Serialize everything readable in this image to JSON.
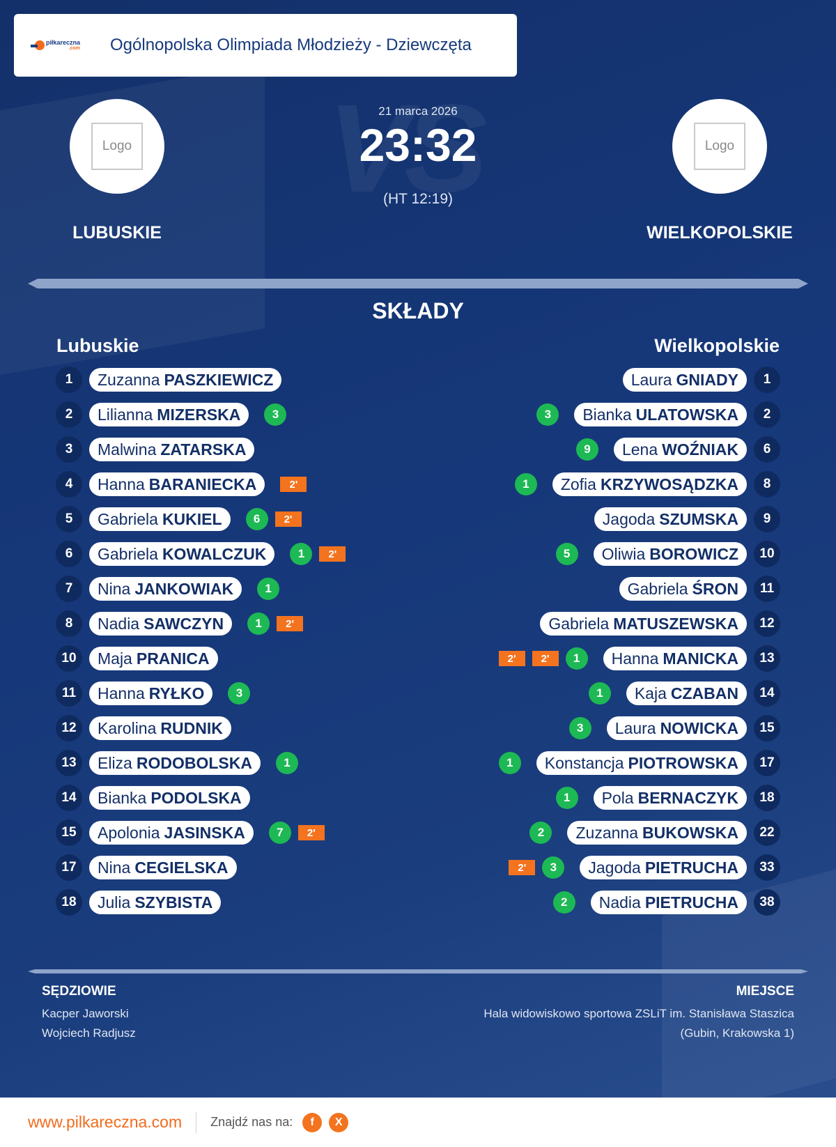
{
  "header": {
    "title": "Ogólnopolska Olimpiada Młodzieży - Dziewczęta",
    "brand": "piłkareczna",
    "brand_sub": ".com"
  },
  "match": {
    "date": "21 marca 2026",
    "score": "23:32",
    "halftime": "(HT 12:19)",
    "vs": "VS"
  },
  "home": {
    "name": "LUBUSKIE",
    "logo": "Logo",
    "squad_title": "Lubuskie"
  },
  "away": {
    "name": "WIELKOPOLSKIE",
    "logo": "Logo",
    "squad_title": "Wielkopolskie"
  },
  "section_title": "SKŁADY",
  "home_players": [
    {
      "no": "1",
      "first": "Zuzanna",
      "last": "PASZKIEWICZ",
      "goals": "",
      "pens": []
    },
    {
      "no": "2",
      "first": "Lilianna",
      "last": "MIZERSKA",
      "goals": "3",
      "pens": []
    },
    {
      "no": "3",
      "first": "Malwina",
      "last": "ZATARSKA",
      "goals": "",
      "pens": []
    },
    {
      "no": "4",
      "first": "Hanna",
      "last": "BARANIECKA",
      "goals": "",
      "pens": [
        "2'"
      ]
    },
    {
      "no": "5",
      "first": "Gabriela",
      "last": "KUKIEL",
      "goals": "6",
      "pens": [
        "2'"
      ]
    },
    {
      "no": "6",
      "first": "Gabriela",
      "last": "KOWALCZUK",
      "goals": "1",
      "pens": [
        "2'"
      ]
    },
    {
      "no": "7",
      "first": "Nina",
      "last": "JANKOWIAK",
      "goals": "1",
      "pens": []
    },
    {
      "no": "8",
      "first": "Nadia",
      "last": "SAWCZYN",
      "goals": "1",
      "pens": [
        "2'"
      ]
    },
    {
      "no": "10",
      "first": "Maja",
      "last": "PRANICA",
      "goals": "",
      "pens": []
    },
    {
      "no": "11",
      "first": "Hanna",
      "last": "RYŁKO",
      "goals": "3",
      "pens": []
    },
    {
      "no": "12",
      "first": "Karolina",
      "last": "RUDNIK",
      "goals": "",
      "pens": []
    },
    {
      "no": "13",
      "first": "Eliza",
      "last": "RODOBOLSKA",
      "goals": "1",
      "pens": []
    },
    {
      "no": "14",
      "first": "Bianka",
      "last": "PODOLSKA",
      "goals": "",
      "pens": []
    },
    {
      "no": "15",
      "first": "Apolonia",
      "last": "JASINSKA",
      "goals": "7",
      "pens": [
        "2'"
      ]
    },
    {
      "no": "17",
      "first": "Nina",
      "last": "CEGIELSKA",
      "goals": "",
      "pens": []
    },
    {
      "no": "18",
      "first": "Julia",
      "last": "SZYBISTA",
      "goals": "",
      "pens": []
    }
  ],
  "away_players": [
    {
      "no": "1",
      "first": "Laura",
      "last": "GNIADY",
      "goals": "",
      "pens": []
    },
    {
      "no": "2",
      "first": "Bianka",
      "last": "ULATOWSKA",
      "goals": "3",
      "pens": []
    },
    {
      "no": "6",
      "first": "Lena",
      "last": "WOŹNIAK",
      "goals": "9",
      "pens": []
    },
    {
      "no": "8",
      "first": "Zofia",
      "last": "KRZYWOSĄDZKA",
      "goals": "1",
      "pens": []
    },
    {
      "no": "9",
      "first": "Jagoda",
      "last": "SZUMSKA",
      "goals": "",
      "pens": []
    },
    {
      "no": "10",
      "first": "Oliwia",
      "last": "BOROWICZ",
      "goals": "5",
      "pens": []
    },
    {
      "no": "11",
      "first": "Gabriela",
      "last": "ŚRON",
      "goals": "",
      "pens": []
    },
    {
      "no": "12",
      "first": "Gabriela",
      "last": "MATUSZEWSKA",
      "goals": "",
      "pens": []
    },
    {
      "no": "13",
      "first": "Hanna",
      "last": "MANICKA",
      "goals": "1",
      "pens": [
        "2'",
        "2'"
      ]
    },
    {
      "no": "14",
      "first": "Kaja",
      "last": "CZABAN",
      "goals": "1",
      "pens": []
    },
    {
      "no": "15",
      "first": "Laura",
      "last": "NOWICKA",
      "goals": "3",
      "pens": []
    },
    {
      "no": "17",
      "first": "Konstancja",
      "last": "PIOTROWSKA",
      "goals": "1",
      "pens": []
    },
    {
      "no": "18",
      "first": "Pola",
      "last": "BERNACZYK",
      "goals": "1",
      "pens": []
    },
    {
      "no": "22",
      "first": "Zuzanna",
      "last": "BUKOWSKA",
      "goals": "2",
      "pens": []
    },
    {
      "no": "33",
      "first": "Jagoda",
      "last": "PIETRUCHA",
      "goals": "3",
      "pens": [
        "2'"
      ]
    },
    {
      "no": "38",
      "first": "Nadia",
      "last": "PIETRUCHA",
      "goals": "2",
      "pens": []
    }
  ],
  "referees": {
    "title": "SĘDZIOWIE",
    "names": [
      "Kacper Jaworski",
      "Wojciech Radjusz"
    ]
  },
  "venue": {
    "title": "MIEJSCE",
    "lines": [
      "Hala widowiskowo sportowa ZSLiT im. Stanisława Staszica",
      "(Gubin, Krakowska 1)"
    ]
  },
  "footer": {
    "site": "www.pilkareczna.com",
    "find": "Znajdź nas na:",
    "social": [
      {
        "icon": "facebook-icon",
        "glyph": "f"
      },
      {
        "icon": "x-icon",
        "glyph": "X"
      }
    ]
  },
  "colors": {
    "background": "#13336d",
    "accent": "#f26b1d",
    "goal": "#1db954",
    "penalty": "#f4731e"
  }
}
